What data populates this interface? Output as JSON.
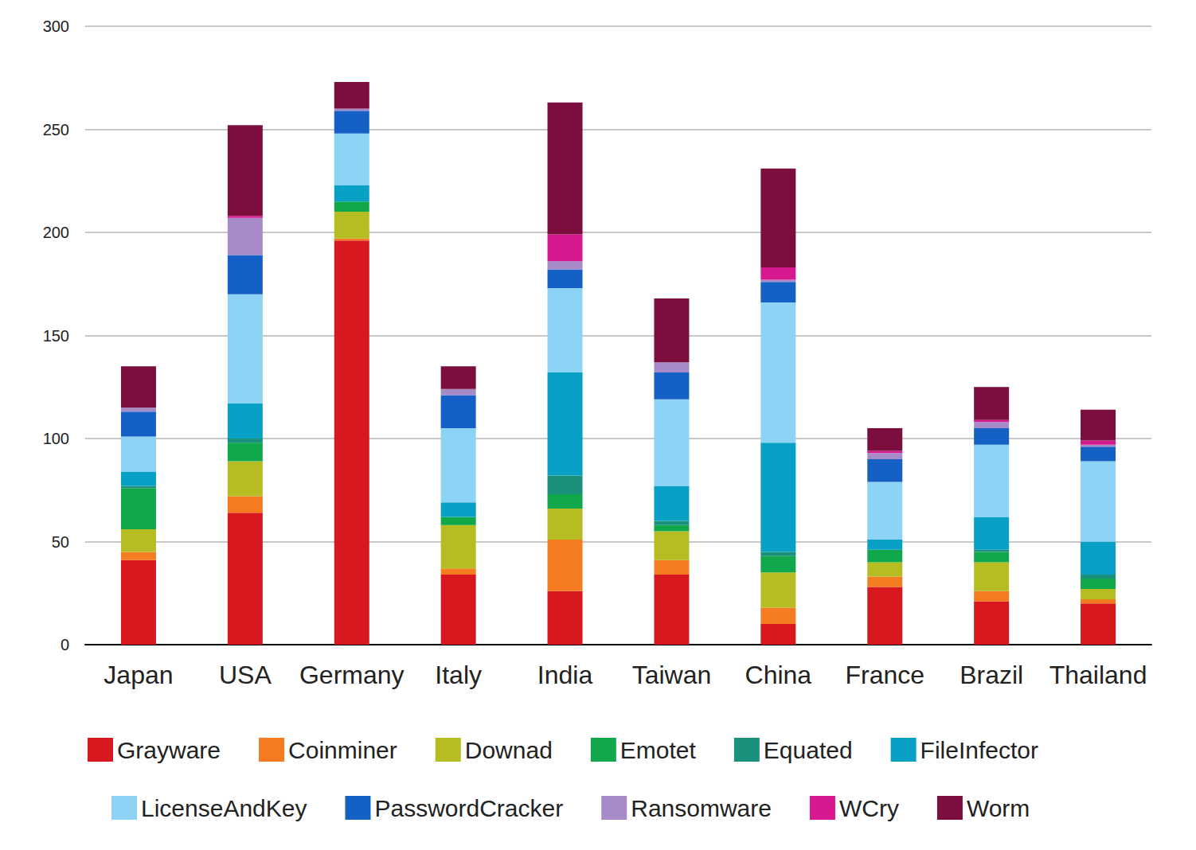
{
  "chart_data": {
    "type": "bar",
    "stacked": true,
    "grid": true,
    "legend": "bottom",
    "categories": [
      "Japan",
      "USA",
      "Germany",
      "Italy",
      "India",
      "Taiwan",
      "China",
      "France",
      "Brazil",
      "Thailand"
    ],
    "ylim": [
      0,
      300
    ],
    "yticks": [
      0,
      50,
      100,
      150,
      200,
      250,
      300
    ],
    "series": [
      {
        "name": "Grayware",
        "color": "#d7191f",
        "values": [
          41,
          64,
          196,
          34,
          26,
          34,
          10,
          28,
          21,
          20
        ]
      },
      {
        "name": "Coinminer",
        "color": "#f47b20",
        "values": [
          4,
          8,
          1,
          3,
          25,
          7,
          8,
          5,
          5,
          2
        ]
      },
      {
        "name": "Downad",
        "color": "#b5bd22",
        "values": [
          11,
          17,
          13,
          21,
          15,
          14,
          17,
          7,
          14,
          5
        ]
      },
      {
        "name": "Emotet",
        "color": "#10a84a",
        "values": [
          20,
          9,
          5,
          4,
          7,
          3,
          8,
          6,
          5,
          5
        ]
      },
      {
        "name": "Equated",
        "color": "#1b917c",
        "values": [
          1,
          2,
          0,
          0,
          9,
          2,
          2,
          0,
          1,
          2
        ]
      },
      {
        "name": "FileInfector",
        "color": "#08a0c4",
        "values": [
          7,
          17,
          8,
          7,
          50,
          17,
          53,
          5,
          16,
          16
        ]
      },
      {
        "name": "LicenseAndKey",
        "color": "#8dd3f5",
        "values": [
          17,
          53,
          25,
          36,
          41,
          42,
          68,
          28,
          35,
          39
        ]
      },
      {
        "name": "PasswordCracker",
        "color": "#1460c4",
        "values": [
          12,
          19,
          11,
          16,
          9,
          13,
          10,
          11,
          8,
          7
        ]
      },
      {
        "name": "Ransomware",
        "color": "#a68bc8",
        "values": [
          2,
          18,
          1,
          3,
          4,
          5,
          1,
          3,
          3,
          1
        ]
      },
      {
        "name": "WCry",
        "color": "#d8188f",
        "values": [
          0,
          1,
          0,
          0,
          13,
          0,
          6,
          1,
          1,
          2
        ]
      },
      {
        "name": "Worm",
        "color": "#7b0e3f",
        "values": [
          20,
          44,
          13,
          11,
          64,
          31,
          48,
          11,
          16,
          15
        ]
      }
    ]
  }
}
